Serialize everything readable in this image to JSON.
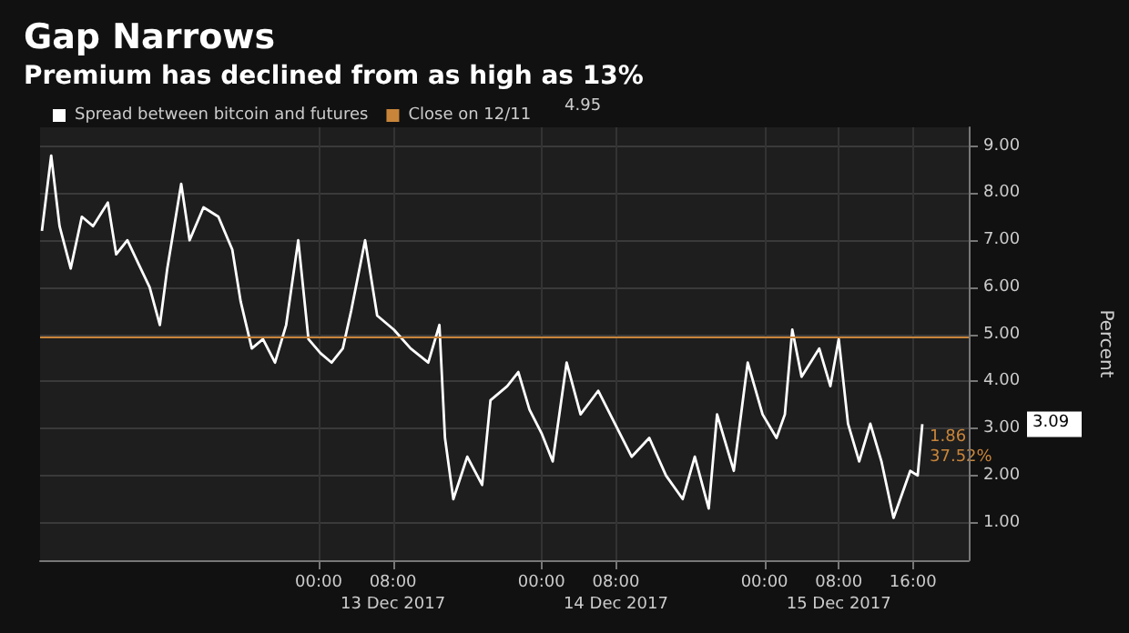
{
  "chart_data": {
    "type": "line",
    "title": "Gap Narrows",
    "subtitle": "Premium has declined from as high as 13%",
    "ylabel": "Percent",
    "x": [
      "2017-12-11T18:12",
      "2017-12-11T19:12",
      "2017-12-11T20:06",
      "2017-12-11T21:18",
      "2017-12-11T22:30",
      "2017-12-11T23:42",
      "2017-12-12T01:18",
      "2017-12-12T02:12",
      "2017-12-12T03:24",
      "2017-12-12T04:36",
      "2017-12-12T05:48",
      "2017-12-12T06:54",
      "2017-12-12T07:42",
      "2017-12-12T09:12",
      "2017-12-12T10:06",
      "2017-12-12T11:36",
      "2017-12-12T13:12",
      "2017-12-12T14:42",
      "2017-12-12T15:36",
      "2017-12-12T16:48",
      "2017-12-12T18:00",
      "2017-12-12T19:18",
      "2017-12-12T20:30",
      "2017-12-12T21:48",
      "2017-12-12T22:54",
      "2017-12-13T00:12",
      "2017-12-13T01:24",
      "2017-12-13T02:36",
      "2017-12-13T03:30",
      "2017-12-13T05:00",
      "2017-12-13T06:18",
      "2017-12-13T08:06",
      "2017-12-13T09:54",
      "2017-12-13T11:48",
      "2017-12-13T13:00",
      "2017-12-13T13:36",
      "2017-12-13T14:30",
      "2017-12-13T16:00",
      "2017-12-13T17:36",
      "2017-12-13T18:30",
      "2017-12-13T20:18",
      "2017-12-13T21:30",
      "2017-12-13T22:42",
      "2017-12-14T00:00",
      "2017-12-14T01:12",
      "2017-12-14T02:42",
      "2017-12-14T04:12",
      "2017-12-14T06:06",
      "2017-12-14T07:54",
      "2017-12-14T09:42",
      "2017-12-14T11:36",
      "2017-12-14T13:24",
      "2017-12-14T15:12",
      "2017-12-14T16:30",
      "2017-12-14T18:00",
      "2017-12-14T18:54",
      "2017-12-14T20:42",
      "2017-12-14T22:12",
      "2017-12-14T23:48",
      "2017-12-15T01:18",
      "2017-12-15T02:12",
      "2017-12-15T03:00",
      "2017-12-15T04:00",
      "2017-12-15T05:54",
      "2017-12-15T07:06",
      "2017-12-15T08:00",
      "2017-12-15T09:00",
      "2017-12-15T10:12",
      "2017-12-15T11:24",
      "2017-12-15T12:36",
      "2017-12-15T13:54",
      "2017-12-15T15:42",
      "2017-12-15T16:30",
      "2017-12-15T17:00"
    ],
    "series": [
      {
        "name": "Spread between bitcoin and futures",
        "color": "#ffffff",
        "values": [
          7.2,
          8.8,
          7.3,
          6.4,
          7.5,
          7.3,
          7.8,
          6.7,
          7.0,
          6.5,
          6.0,
          5.2,
          6.4,
          8.2,
          7.0,
          7.7,
          7.5,
          6.8,
          5.7,
          4.7,
          4.9,
          4.4,
          5.2,
          7.0,
          4.9,
          4.6,
          4.4,
          4.7,
          5.5,
          7.0,
          5.4,
          5.1,
          4.7,
          4.4,
          5.2,
          2.8,
          1.5,
          2.4,
          1.8,
          3.6,
          3.9,
          4.2,
          3.4,
          2.9,
          2.3,
          4.4,
          3.3,
          3.8,
          3.1,
          2.4,
          2.8,
          2.0,
          1.5,
          2.4,
          1.3,
          3.3,
          2.1,
          4.4,
          3.3,
          2.8,
          3.3,
          5.1,
          4.1,
          4.7,
          3.9,
          4.9,
          3.1,
          2.3,
          3.1,
          2.3,
          1.1,
          2.1,
          2.0,
          3.09
        ]
      }
    ],
    "ref_lines": [
      {
        "axis": "y",
        "value": 4.95,
        "label": "Close on 12/11",
        "color": "#c8853a"
      }
    ],
    "annotations": [
      "4.95",
      "3.09",
      "1.86",
      "37.52%"
    ],
    "xlim": [
      "2017-12-11T18:00",
      "2017-12-15T22:00"
    ],
    "xticks": [
      {
        "value": "2017-12-13T00:00",
        "label": "00:00"
      },
      {
        "value": "2017-12-13T08:00",
        "label": "08:00"
      },
      {
        "value": "2017-12-14T00:00",
        "label": "00:00"
      },
      {
        "value": "2017-12-14T08:00",
        "label": "08:00"
      },
      {
        "value": "2017-12-15T00:00",
        "label": "00:00"
      },
      {
        "value": "2017-12-15T08:00",
        "label": "08:00"
      },
      {
        "value": "2017-12-15T16:00",
        "label": "16:00"
      }
    ],
    "x2lim": [
      "2017-12-11T18:00",
      "2017-12-15T22:00"
    ],
    "x2ticks": [
      {
        "value": "2017-12-13T08:00",
        "label": "13 Dec 2017"
      },
      {
        "value": "2017-12-14T08:00",
        "label": "14 Dec 2017"
      },
      {
        "value": "2017-12-15T08:00",
        "label": "15 Dec 2017"
      }
    ],
    "ylim": [
      0.2,
      9.4
    ],
    "yticks": [
      {
        "value": 1,
        "label": "1.00"
      },
      {
        "value": 2,
        "label": "2.00"
      },
      {
        "value": 3,
        "label": "3.00"
      },
      {
        "value": 4,
        "label": "4.00"
      },
      {
        "value": 5,
        "label": "5.00"
      },
      {
        "value": 6,
        "label": "6.00"
      },
      {
        "value": 7,
        "label": "7.00"
      },
      {
        "value": 8,
        "label": "8.00"
      },
      {
        "value": 9,
        "label": "9.00"
      }
    ],
    "grid": true,
    "legend": "top left",
    "marker": "none",
    "line_style": "solid"
  }
}
